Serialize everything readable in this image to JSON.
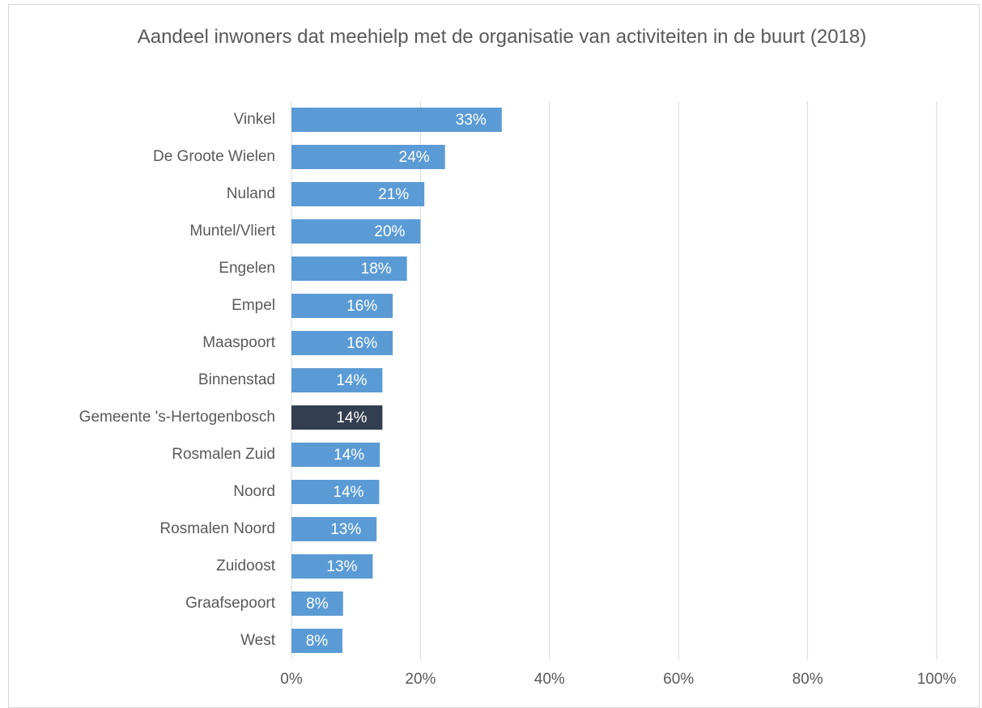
{
  "chart_data": {
    "type": "hbar",
    "title": "Aandeel inwoners dat meehielp met de organisatie van activiteiten in de buurt (2018)",
    "categories": [
      "Vinkel",
      "De Groote Wielen",
      "Nuland",
      "Muntel/Vliert",
      "Engelen",
      "Empel",
      "Maaspoort",
      "Binnenstad",
      "Gemeente 's-Hertogenbosch",
      "Rosmalen Zuid",
      "Noord",
      "Rosmalen Noord",
      "Zuidoost",
      "Graafsepoort",
      "West"
    ],
    "values": [
      32.6,
      23.8,
      20.6,
      20.0,
      17.9,
      15.7,
      15.7,
      14.1,
      14.1,
      13.7,
      13.6,
      13.2,
      12.6,
      8.0,
      7.9
    ],
    "value_labels": [
      "33%",
      "24%",
      "21%",
      "20%",
      "18%",
      "16%",
      "16%",
      "14%",
      "14%",
      "14%",
      "14%",
      "13%",
      "13%",
      "8%",
      "8%"
    ],
    "colors": [
      "#5b9bd5",
      "#5b9bd5",
      "#5b9bd5",
      "#5b9bd5",
      "#5b9bd5",
      "#5b9bd5",
      "#5b9bd5",
      "#5b9bd5",
      "#333f50",
      "#5b9bd5",
      "#5b9bd5",
      "#5b9bd5",
      "#5b9bd5",
      "#5b9bd5",
      "#5b9bd5"
    ],
    "xlim": [
      0,
      100
    ],
    "xticks": [
      {
        "value": 0,
        "label": "0%"
      },
      {
        "value": 20,
        "label": "20%"
      },
      {
        "value": 40,
        "label": "40%"
      },
      {
        "value": 60,
        "label": "60%"
      },
      {
        "value": 80,
        "label": "80%"
      },
      {
        "value": 100,
        "label": "100%"
      }
    ],
    "grid": true
  }
}
